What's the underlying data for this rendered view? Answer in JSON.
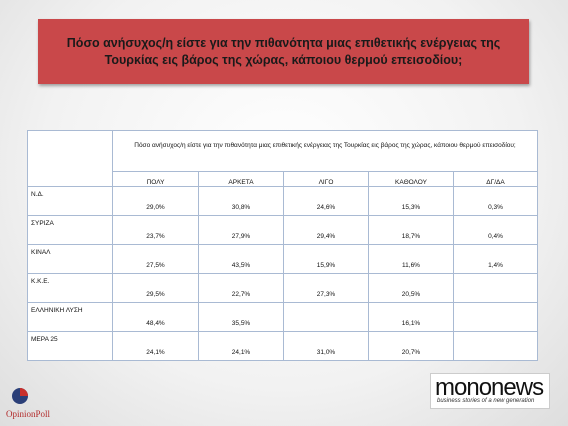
{
  "header": {
    "title": "Πόσο ανήσυχος/η είστε για την πιθανότητα μιας επιθετικής ενέργειας της Τουρκίας εις βάρος της χώρας, κάποιου θερμού επεισοδίου;"
  },
  "table": {
    "question": "Πόσο ανήσυχος/η είστε για την πιθανότητα μιας επιθετικής ενέργειας της Τουρκίας εις βάρος της χώρας, κάποιου θερμού επεισοδίου;",
    "columns": [
      "ΠΟΛΥ",
      "ΑΡΚΕΤΑ",
      "ΛΙΓΟ",
      "ΚΑΘΟΛΟΥ",
      "ΔΓ/ΔΑ"
    ],
    "rows": [
      [
        "Ν.Δ.",
        "29,0%",
        "30,8%",
        "24,6%",
        "15,3%",
        "0,3%"
      ],
      [
        "ΣΥΡΙΖΑ",
        "23,7%",
        "27,9%",
        "29,4%",
        "18,7%",
        "0,4%"
      ],
      [
        "ΚΙΝΑΛ",
        "27,5%",
        "43,5%",
        "15,9%",
        "11,6%",
        "1,4%"
      ],
      [
        "Κ.Κ.Ε.",
        "29,5%",
        "22,7%",
        "27,3%",
        "20,5%",
        null
      ],
      [
        "ΕΛΛΗΝΙΚΗ ΛΥΣΗ",
        "48,4%",
        "35,5%",
        null,
        "16,1%",
        null
      ],
      [
        "ΜΕΡΑ 25",
        "24,1%",
        "24,1%",
        "31,0%",
        "20,7%",
        null
      ]
    ]
  },
  "footer": {
    "left_logo": "OpinionPoll",
    "right_logo_a": "mono",
    "right_logo_b": "news",
    "right_tagline": "business stories of a new generation"
  }
}
